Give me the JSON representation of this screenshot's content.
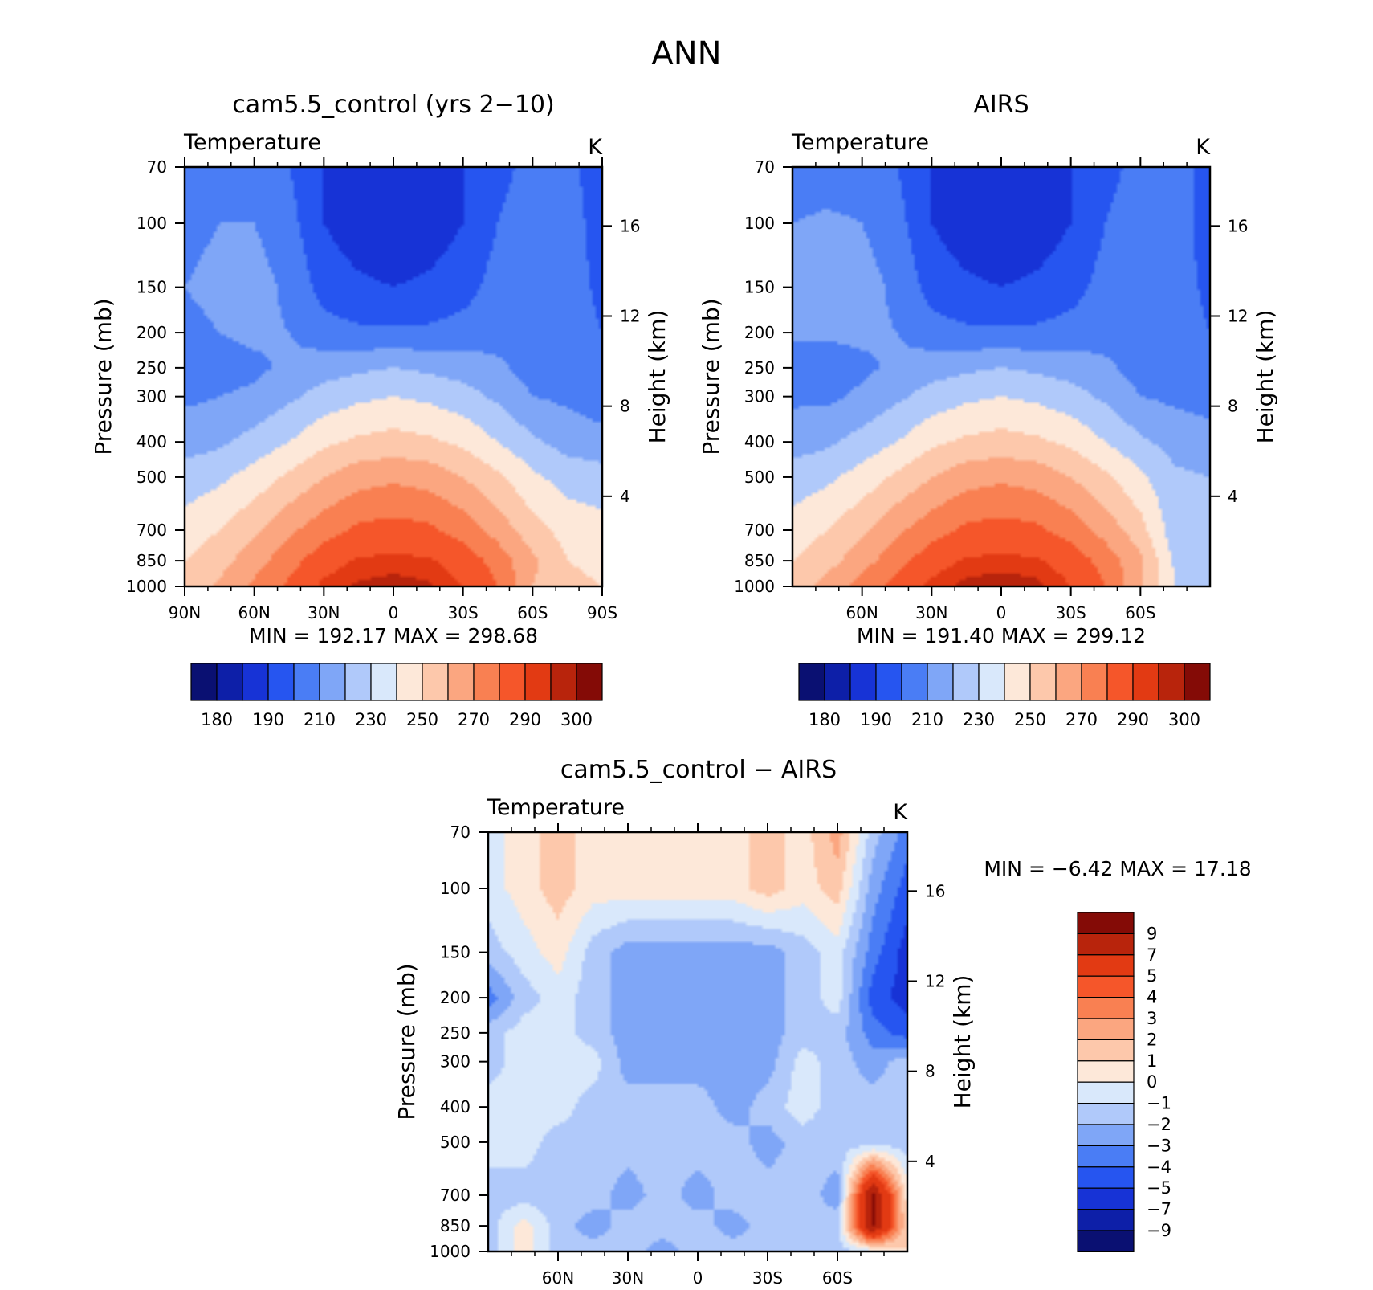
{
  "figure_title": "ANN",
  "colors": {
    "abs_palette": [
      "#0a1072",
      "#0d1fa8",
      "#1733d6",
      "#2655f0",
      "#4a7df5",
      "#7fa6f7",
      "#b0c9fa",
      "#d9e8fb",
      "#fde8d9",
      "#fdc8ab",
      "#fba680",
      "#f98052",
      "#f5562a",
      "#e23a13",
      "#b8240c",
      "#840b06"
    ],
    "diff_palette": [
      "#0a1072",
      "#0d1fa8",
      "#1733d6",
      "#2655f0",
      "#4a7df5",
      "#7fa6f7",
      "#b0c9fa",
      "#d9e8fb",
      "#fde8d9",
      "#fdc8ab",
      "#fba680",
      "#f98052",
      "#f5562a",
      "#e23a13",
      "#b8240c",
      "#840b06"
    ]
  },
  "panels": [
    {
      "title": "cam5.5_control (yrs 2−10)",
      "left_label": "Temperature",
      "right_label": "K",
      "minmax": "MIN  =  192.17   MAX  =  298.68"
    },
    {
      "title": "AIRS",
      "left_label": "Temperature",
      "right_label": "K",
      "minmax": "MIN  =  191.40   MAX  =  299.12"
    },
    {
      "title": "cam5.5_control  −  AIRS",
      "left_label": "Temperature",
      "right_label": "K",
      "minmax": "MIN  =    −6.42   MAX  =    17.18"
    }
  ],
  "axes": {
    "ylabel": "Pressure  (mb)",
    "y2label": "Height  (km)",
    "pressure_ticks": [
      "70",
      "100",
      "150",
      "200",
      "250",
      "300",
      "400",
      "500",
      "700",
      "850",
      "1000"
    ],
    "height_ticks": [
      "16",
      "12",
      "8",
      "4"
    ],
    "lat_ticks_full": [
      "90N",
      "60N",
      "30N",
      "0",
      "30S",
      "60S",
      "90S"
    ],
    "lat_ticks_partial": [
      "60N",
      "30N",
      "0",
      "30S",
      "60S"
    ]
  },
  "colorbars": {
    "abs_labels": [
      "180",
      "190",
      "210",
      "230",
      "250",
      "270",
      "290",
      "300"
    ],
    "diff_labels": [
      "9",
      "7",
      "5",
      "4",
      "3",
      "2",
      "1",
      "0",
      "−1",
      "−2",
      "−3",
      "−4",
      "−5",
      "−7",
      "−9"
    ]
  },
  "chart_data": [
    {
      "type": "heatmap",
      "title": "cam5.5_control (yrs 2−10)",
      "subtitle": "Temperature",
      "units": "K",
      "xlabel": "",
      "ylabel": "Pressure  (mb)",
      "y2label": "Height  (km)",
      "x_ticks": [
        "90N",
        "60N",
        "30N",
        "0",
        "30S",
        "60S",
        "90S"
      ],
      "lat": [
        90,
        75,
        60,
        45,
        30,
        15,
        0,
        -15,
        -30,
        -45,
        -60,
        -75,
        -90
      ],
      "pressure": [
        1000,
        850,
        700,
        500,
        400,
        300,
        250,
        200,
        150,
        100,
        70
      ],
      "values": [
        [
          252,
          262,
          272,
          282,
          292,
          296,
          298,
          296,
          290,
          280,
          260,
          252,
          250
        ],
        [
          250,
          256,
          266,
          276,
          286,
          291,
          292,
          291,
          286,
          276,
          262,
          250,
          248
        ],
        [
          245,
          250,
          258,
          268,
          276,
          282,
          284,
          282,
          276,
          266,
          254,
          246,
          244
        ],
        [
          234,
          238,
          244,
          252,
          260,
          266,
          268,
          266,
          260,
          252,
          242,
          236,
          234
        ],
        [
          226,
          228,
          234,
          240,
          248,
          252,
          254,
          252,
          248,
          240,
          232,
          226,
          224
        ],
        [
          218,
          220,
          222,
          228,
          234,
          238,
          240,
          238,
          234,
          228,
          220,
          218,
          214
        ],
        [
          214,
          216,
          218,
          222,
          226,
          228,
          230,
          228,
          226,
          222,
          216,
          214,
          212
        ],
        [
          216,
          220,
          222,
          220,
          214,
          212,
          212,
          212,
          214,
          216,
          216,
          214,
          210
        ],
        [
          220,
          224,
          224,
          218,
          206,
          202,
          200,
          202,
          206,
          214,
          216,
          214,
          208
        ],
        [
          216,
          220,
          220,
          214,
          200,
          194,
          193,
          194,
          200,
          210,
          214,
          214,
          206
        ],
        [
          212,
          214,
          214,
          210,
          200,
          194,
          193,
          194,
          200,
          208,
          212,
          212,
          206
        ]
      ],
      "levels": [
        180,
        190,
        200,
        210,
        220,
        230,
        240,
        250,
        260,
        270,
        280,
        290,
        295,
        300
      ],
      "min": 192.17,
      "max": 298.68
    },
    {
      "type": "heatmap",
      "title": "AIRS",
      "subtitle": "Temperature",
      "units": "K",
      "xlabel": "",
      "ylabel": "Pressure  (mb)",
      "y2label": "Height  (km)",
      "x_ticks": [
        "60N",
        "30N",
        "0",
        "30S",
        "60S"
      ],
      "lat": [
        90,
        75,
        60,
        45,
        30,
        15,
        0,
        -15,
        -30,
        -45,
        -60,
        -75,
        -90
      ],
      "pressure": [
        1000,
        850,
        700,
        500,
        400,
        300,
        250,
        200,
        150,
        100,
        70
      ],
      "values": [
        [
          254,
          264,
          274,
          284,
          292,
          297,
          299,
          297,
          290,
          280,
          262,
          240,
          236
        ],
        [
          250,
          256,
          266,
          276,
          286,
          291,
          292,
          291,
          286,
          276,
          262,
          238,
          234
        ],
        [
          245,
          250,
          258,
          268,
          276,
          282,
          284,
          282,
          276,
          266,
          254,
          234,
          232
        ],
        [
          234,
          238,
          244,
          252,
          260,
          266,
          268,
          266,
          260,
          252,
          242,
          232,
          230
        ],
        [
          226,
          228,
          234,
          240,
          248,
          252,
          254,
          252,
          248,
          240,
          232,
          226,
          224
        ],
        [
          218,
          218,
          222,
          228,
          234,
          238,
          240,
          238,
          234,
          228,
          220,
          218,
          216
        ],
        [
          214,
          214,
          218,
          222,
          226,
          228,
          230,
          228,
          226,
          222,
          216,
          214,
          212
        ],
        [
          222,
          222,
          222,
          220,
          214,
          212,
          212,
          212,
          214,
          216,
          216,
          214,
          210
        ],
        [
          224,
          224,
          224,
          218,
          206,
          202,
          200,
          202,
          206,
          214,
          216,
          214,
          208
        ],
        [
          220,
          222,
          220,
          214,
          200,
          194,
          193,
          194,
          200,
          210,
          214,
          214,
          206
        ],
        [
          214,
          214,
          214,
          210,
          200,
          194,
          193,
          194,
          200,
          208,
          212,
          212,
          208
        ]
      ],
      "levels": [
        180,
        190,
        200,
        210,
        220,
        230,
        240,
        250,
        260,
        270,
        280,
        290,
        295,
        300
      ],
      "min": 191.4,
      "max": 299.12
    },
    {
      "type": "heatmap",
      "title": "cam5.5_control  −  AIRS",
      "subtitle": "Temperature",
      "units": "K",
      "xlabel": "",
      "ylabel": "Pressure  (mb)",
      "y2label": "Height  (km)",
      "x_ticks": [
        "60N",
        "30N",
        "0",
        "30S",
        "60S"
      ],
      "lat": [
        90,
        75,
        60,
        45,
        30,
        15,
        0,
        -15,
        -30,
        -45,
        -60,
        -75,
        -90
      ],
      "pressure": [
        1000,
        850,
        700,
        500,
        400,
        300,
        250,
        200,
        150,
        100,
        70
      ],
      "values": [
        [
          -1.5,
          0.5,
          -1.5,
          -1.5,
          -1.5,
          -2.5,
          -1.5,
          -1.5,
          -1.5,
          -1.5,
          -1.5,
          -0.5,
          1
        ],
        [
          -1.5,
          0.5,
          -1.5,
          -2.5,
          -1.5,
          -1.5,
          -1.5,
          -2.5,
          -1.5,
          -1.5,
          -1.5,
          9.5,
          1
        ],
        [
          -1.5,
          -1.5,
          -1.5,
          -1.5,
          -2.5,
          -1.5,
          -2.5,
          -1.5,
          -1.5,
          -1.5,
          -2.5,
          9.5,
          0.5
        ],
        [
          -0.5,
          -0.5,
          -1.5,
          -1.5,
          -1.5,
          -1.5,
          -1.5,
          -1.5,
          -2.5,
          -1.5,
          -1.5,
          -1.5,
          -1.5
        ],
        [
          -0.5,
          -0.5,
          -0.5,
          -1.5,
          -1.5,
          -1.5,
          -1.5,
          -2.5,
          -1.5,
          -0.5,
          -1.5,
          -1.5,
          -1.5
        ],
        [
          -1.5,
          -0.5,
          -0.5,
          -0.5,
          -2.5,
          -2.5,
          -2.5,
          -2.5,
          -2.5,
          -0.5,
          -1.5,
          -2.5,
          -1.5
        ],
        [
          -1.5,
          -0.5,
          -0.5,
          -1.5,
          -2.5,
          -2.5,
          -2.5,
          -2.5,
          -2.5,
          -1.5,
          -1.5,
          -3.5,
          -4.5
        ],
        [
          -3.5,
          -1.5,
          -0.5,
          -1.5,
          -2.5,
          -2.5,
          -2.5,
          -2.5,
          -2.5,
          -1.5,
          -0.5,
          -4.5,
          -5.5
        ],
        [
          -1.5,
          -0.5,
          0.5,
          -1.5,
          -2.5,
          -2.5,
          -2.5,
          -2.5,
          -2.5,
          -1.5,
          -0.5,
          -3.5,
          -5.5
        ],
        [
          -0.5,
          0.5,
          1.5,
          0.5,
          0.5,
          0.5,
          0.5,
          0.5,
          1.5,
          0.5,
          1.5,
          -2.5,
          -4.5
        ],
        [
          -0.5,
          0.5,
          1.5,
          0.5,
          0.5,
          0.5,
          0.5,
          0.5,
          1.5,
          0.5,
          2.5,
          -1.5,
          -3.5
        ]
      ],
      "levels": [
        -9,
        -7,
        -5,
        -4,
        -3,
        -2,
        -1,
        0,
        1,
        2,
        3,
        4,
        5,
        7,
        9
      ],
      "min": -6.42,
      "max": 17.18
    }
  ]
}
